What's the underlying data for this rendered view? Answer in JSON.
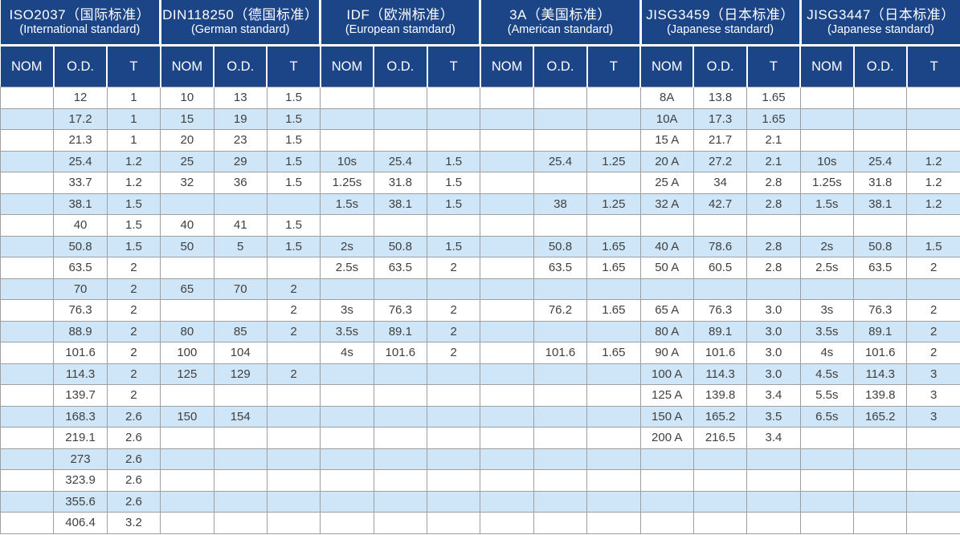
{
  "colors": {
    "header_blue": "#1c4587",
    "row_alt_blue": "#cfe6f8",
    "grid_gray": "#9f9f9f",
    "body_text": "#404040",
    "header_text": "#ffffff"
  },
  "table": {
    "groups": [
      {
        "title": "ISO2037（国际标准）",
        "subtitle": "(International standard)"
      },
      {
        "title": "DIN118250（德国标准）",
        "subtitle": "(German standard)"
      },
      {
        "title": "IDF（欧洲标准）",
        "subtitle": "(European stamdard)"
      },
      {
        "title": "3A（美国标准）",
        "subtitle": "(American standard)"
      },
      {
        "title": "JISG3459（日本标准）",
        "subtitle": "(Japanese standard)"
      },
      {
        "title": "JISG3447（日本标准）",
        "subtitle": "(Japanese standard)"
      }
    ],
    "columns": [
      "NOM",
      "O.D.",
      "T"
    ],
    "rows": [
      [
        "",
        "12",
        "1",
        "10",
        "13",
        "1.5",
        "",
        "",
        "",
        "",
        "",
        "",
        "8A",
        "13.8",
        "1.65",
        "",
        "",
        ""
      ],
      [
        "",
        "17.2",
        "1",
        "15",
        "19",
        "1.5",
        "",
        "",
        "",
        "",
        "",
        "",
        "10A",
        "17.3",
        "1.65",
        "",
        "",
        ""
      ],
      [
        "",
        "21.3",
        "1",
        "20",
        "23",
        "1.5",
        "",
        "",
        "",
        "",
        "",
        "",
        "15 A",
        "21.7",
        "2.1",
        "",
        "",
        ""
      ],
      [
        "",
        "25.4",
        "1.2",
        "25",
        "29",
        "1.5",
        "10s",
        "25.4",
        "1.5",
        "",
        "25.4",
        "1.25",
        "20 A",
        "27.2",
        "2.1",
        "10s",
        "25.4",
        "1.2"
      ],
      [
        "",
        "33.7",
        "1.2",
        "32",
        "36",
        "1.5",
        "1.25s",
        "31.8",
        "1.5",
        "",
        "",
        "",
        "25 A",
        "34",
        "2.8",
        "1.25s",
        "31.8",
        "1.2"
      ],
      [
        "",
        "38.1",
        "1.5",
        "",
        "",
        "",
        "1.5s",
        "38.1",
        "1.5",
        "",
        "38",
        "1.25",
        "32 A",
        "42.7",
        "2.8",
        "1.5s",
        "38.1",
        "1.2"
      ],
      [
        "",
        "40",
        "1.5",
        "40",
        "41",
        "1.5",
        "",
        "",
        "",
        "",
        "",
        "",
        "",
        "",
        "",
        "",
        "",
        ""
      ],
      [
        "",
        "50.8",
        "1.5",
        "50",
        "5",
        "1.5",
        "2s",
        "50.8",
        "1.5",
        "",
        "50.8",
        "1.65",
        "40 A",
        "78.6",
        "2.8",
        "2s",
        "50.8",
        "1.5"
      ],
      [
        "",
        "63.5",
        "2",
        "",
        "",
        "",
        "2.5s",
        "63.5",
        "2",
        "",
        "63.5",
        "1.65",
        "50 A",
        "60.5",
        "2.8",
        "2.5s",
        "63.5",
        "2"
      ],
      [
        "",
        "70",
        "2",
        "65",
        "70",
        "2",
        "",
        "",
        "",
        "",
        "",
        "",
        "",
        "",
        "",
        "",
        "",
        ""
      ],
      [
        "",
        "76.3",
        "2",
        "",
        "",
        "2",
        "3s",
        "76.3",
        "2",
        "",
        "76.2",
        "1.65",
        "65 A",
        "76.3",
        "3.0",
        "3s",
        "76.3",
        "2"
      ],
      [
        "",
        "88.9",
        "2",
        "80",
        "85",
        "2",
        "3.5s",
        "89.1",
        "2",
        "",
        "",
        "",
        "80 A",
        "89.1",
        "3.0",
        "3.5s",
        "89.1",
        "2"
      ],
      [
        "",
        "101.6",
        "2",
        "100",
        "104",
        "",
        "4s",
        "101.6",
        "2",
        "",
        "101.6",
        "1.65",
        "90 A",
        "101.6",
        "3.0",
        "4s",
        "101.6",
        "2"
      ],
      [
        "",
        "114.3",
        "2",
        "125",
        "129",
        "2",
        "",
        "",
        "",
        "",
        "",
        "",
        "100 A",
        "114.3",
        "3.0",
        "4.5s",
        "114.3",
        "3"
      ],
      [
        "",
        "139.7",
        "2",
        "",
        "",
        "",
        "",
        "",
        "",
        "",
        "",
        "",
        "125 A",
        "139.8",
        "3.4",
        "5.5s",
        "139.8",
        "3"
      ],
      [
        "",
        "168.3",
        "2.6",
        "150",
        "154",
        "",
        "",
        "",
        "",
        "",
        "",
        "",
        "150 A",
        "165.2",
        "3.5",
        "6.5s",
        "165.2",
        "3"
      ],
      [
        "",
        "219.1",
        "2.6",
        "",
        "",
        "",
        "",
        "",
        "",
        "",
        "",
        "",
        "200 A",
        "216.5",
        "3.4",
        "",
        "",
        ""
      ],
      [
        "",
        "273",
        "2.6",
        "",
        "",
        "",
        "",
        "",
        "",
        "",
        "",
        "",
        "",
        "",
        "",
        "",
        "",
        ""
      ],
      [
        "",
        "323.9",
        "2.6",
        "",
        "",
        "",
        "",
        "",
        "",
        "",
        "",
        "",
        "",
        "",
        "",
        "",
        "",
        ""
      ],
      [
        "",
        "355.6",
        "2.6",
        "",
        "",
        "",
        "",
        "",
        "",
        "",
        "",
        "",
        "",
        "",
        "",
        "",
        "",
        ""
      ],
      [
        "",
        "406.4",
        "3.2",
        "",
        "",
        "",
        "",
        "",
        "",
        "",
        "",
        "",
        "",
        "",
        "",
        "",
        "",
        ""
      ]
    ]
  }
}
